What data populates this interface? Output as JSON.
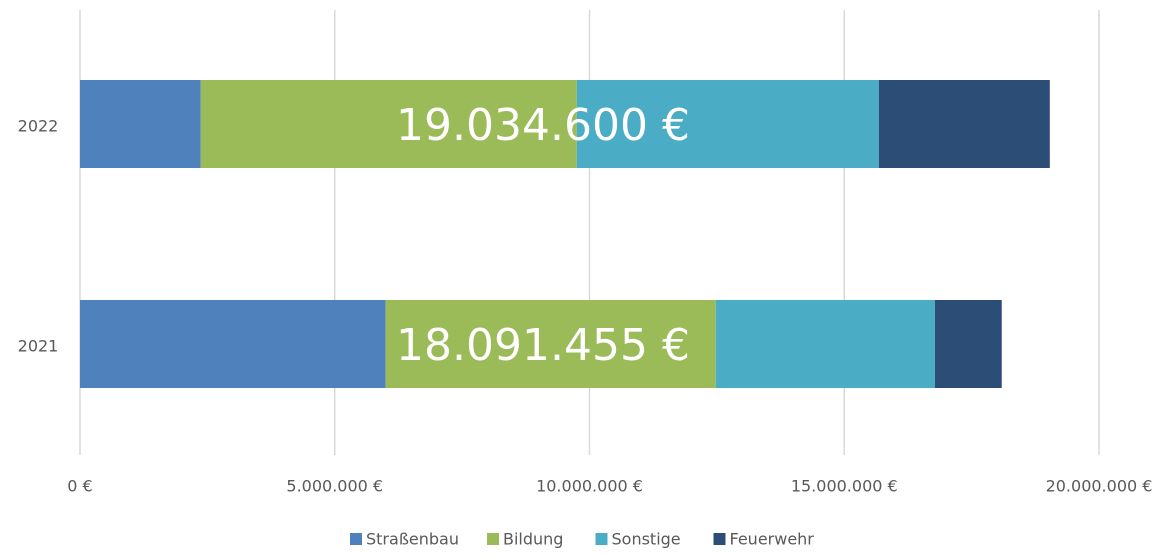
{
  "chart_data": {
    "type": "stacked-barh",
    "categories": [
      "2022",
      "2021"
    ],
    "series": [
      {
        "name": "Straßenbau",
        "color": "#4f81bd",
        "values": [
          2370000,
          6000000
        ]
      },
      {
        "name": "Bildung",
        "color": "#9bbb59",
        "values": [
          7380000,
          6480000
        ]
      },
      {
        "name": "Sonstige",
        "color": "#4bacc6",
        "values": [
          5930000,
          4300000
        ]
      },
      {
        "name": "Feuerwehr",
        "color": "#2c4d75",
        "values": [
          3354600,
          1311455
        ]
      }
    ],
    "totals": [
      {
        "value": 19034600,
        "label": "19.034.600 €"
      },
      {
        "value": 18091455,
        "label": "18.091.455 €"
      }
    ],
    "xlim": [
      0,
      20000000
    ],
    "xticks": [
      {
        "value": 0,
        "label": "0 €"
      },
      {
        "value": 5000000,
        "label": "5.000.000 €"
      },
      {
        "value": 10000000,
        "label": "10.000.000 €"
      },
      {
        "value": 15000000,
        "label": "15.000.000 €"
      },
      {
        "value": 20000000,
        "label": "20.000.000 €"
      }
    ],
    "grid": true,
    "legend": "bottom"
  }
}
